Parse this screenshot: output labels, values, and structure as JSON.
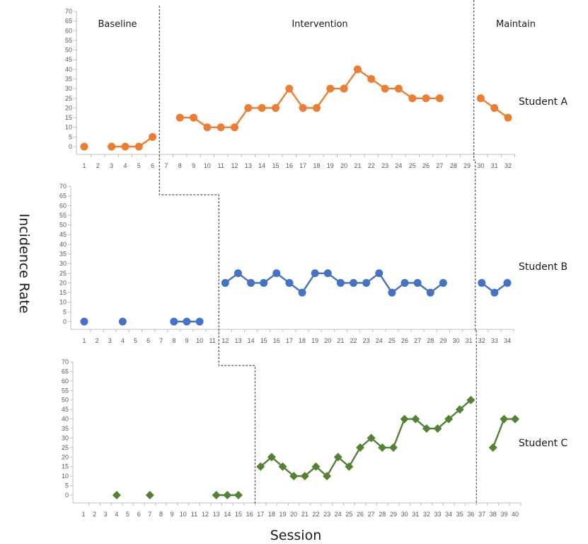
{
  "chart_data": {
    "type": "line",
    "xlabel": "Session",
    "ylabel": "Incidence Rate",
    "ylim": [
      0,
      70
    ],
    "yticks": [
      0,
      5,
      10,
      15,
      20,
      25,
      30,
      35,
      40,
      45,
      50,
      55,
      60,
      65,
      70
    ],
    "phases": [
      "Baseline",
      "Intervention",
      "Maintain"
    ],
    "colors": {
      "Student A": "#ED7D31",
      "Student B": "#4472C4",
      "Student C": "#548235"
    },
    "panels": [
      {
        "series": "Student A",
        "marker": "circle",
        "sessions": 32,
        "phase_change_after": [
          6.5,
          29.5
        ],
        "segments": [
          [
            [
              1,
              0
            ]
          ],
          [
            [
              3,
              0
            ],
            [
              4,
              0
            ],
            [
              5,
              0
            ],
            [
              6,
              5
            ]
          ],
          [
            [
              8,
              15
            ],
            [
              9,
              15
            ],
            [
              10,
              10
            ],
            [
              11,
              10
            ],
            [
              12,
              10
            ],
            [
              13,
              20
            ],
            [
              14,
              20
            ],
            [
              15,
              20
            ],
            [
              16,
              30
            ],
            [
              17,
              20
            ],
            [
              18,
              20
            ],
            [
              19,
              30
            ],
            [
              20,
              30
            ],
            [
              21,
              40
            ],
            [
              22,
              35
            ],
            [
              23,
              30
            ],
            [
              24,
              30
            ],
            [
              25,
              25
            ],
            [
              26,
              25
            ],
            [
              27,
              25
            ]
          ],
          [
            [
              30,
              25
            ],
            [
              31,
              20
            ],
            [
              32,
              15
            ]
          ]
        ]
      },
      {
        "series": "Student B",
        "marker": "circle",
        "sessions": 34,
        "phase_change_after": [
          11.5,
          31.5
        ],
        "segments": [
          [
            [
              1,
              0
            ]
          ],
          [
            [
              4,
              0
            ]
          ],
          [
            [
              8,
              0
            ],
            [
              9,
              0
            ],
            [
              10,
              0
            ]
          ],
          [
            [
              12,
              20
            ],
            [
              13,
              25
            ],
            [
              14,
              20
            ],
            [
              15,
              20
            ],
            [
              16,
              25
            ],
            [
              17,
              20
            ],
            [
              18,
              15
            ],
            [
              19,
              25
            ],
            [
              20,
              25
            ],
            [
              21,
              20
            ],
            [
              22,
              20
            ],
            [
              23,
              20
            ],
            [
              24,
              25
            ],
            [
              25,
              15
            ],
            [
              26,
              20
            ],
            [
              27,
              20
            ],
            [
              28,
              15
            ],
            [
              29,
              20
            ]
          ],
          [
            [
              32,
              20
            ],
            [
              33,
              15
            ],
            [
              34,
              20
            ]
          ]
        ]
      },
      {
        "series": "Student C",
        "marker": "diamond",
        "sessions": 40,
        "phase_change_after": [
          16.5,
          36.5
        ],
        "segments": [
          [
            [
              4,
              0
            ]
          ],
          [
            [
              7,
              0
            ]
          ],
          [
            [
              13,
              0
            ],
            [
              14,
              0
            ],
            [
              15,
              0
            ]
          ],
          [
            [
              17,
              15
            ],
            [
              18,
              20
            ],
            [
              19,
              15
            ],
            [
              20,
              10
            ],
            [
              21,
              10
            ],
            [
              22,
              15
            ],
            [
              23,
              10
            ],
            [
              24,
              20
            ],
            [
              25,
              15
            ],
            [
              26,
              25
            ],
            [
              27,
              30
            ],
            [
              28,
              25
            ],
            [
              29,
              25
            ],
            [
              30,
              40
            ],
            [
              31,
              40
            ],
            [
              32,
              35
            ],
            [
              33,
              35
            ],
            [
              34,
              40
            ],
            [
              35,
              45
            ],
            [
              36,
              50
            ]
          ],
          [
            [
              38,
              25
            ],
            [
              39,
              40
            ],
            [
              40,
              40
            ]
          ]
        ]
      }
    ]
  }
}
